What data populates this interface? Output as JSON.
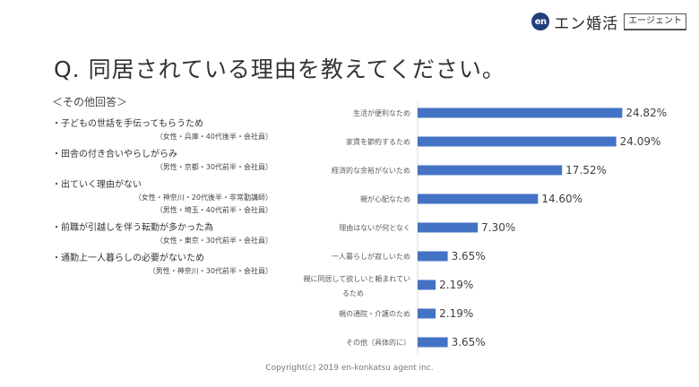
{
  "header": {
    "logo_mark": "en",
    "logo_text": "エン婚活",
    "logo_badge": "エージェント"
  },
  "title": "Q. 同居されている理由を教えてください。",
  "other_answers": {
    "heading": "＜その他回答＞",
    "items": [
      {
        "text": "・子どもの世話を手伝ってもらうため",
        "meta": [
          "（女性・兵庫・40代後半・会社員）"
        ]
      },
      {
        "text": "・田舎の付き合いやらしがらみ",
        "meta": [
          "（男性・京都・30代前半・会社員）"
        ]
      },
      {
        "text": "・出ていく理由がない",
        "meta": [
          "（女性・神奈川・20代後半・非常勤講師）",
          "（男性・埼玉・40代前半・会社員）"
        ]
      },
      {
        "text": "・前職が引越しを伴う転勤が多かった為",
        "meta": [
          "（女性・東京・30代前半・会社員）"
        ]
      },
      {
        "text": "・通勤上一人暮らしの必要がないため",
        "meta": [
          "（男性・神奈川・30代前半・会社員）"
        ]
      }
    ]
  },
  "footer": "Copyright(c) 2019 en-konkatsu agent inc.",
  "colors": {
    "bar": "#4472c4",
    "axis": "#d9d9d9"
  },
  "chart_data": {
    "type": "bar",
    "orientation": "horizontal",
    "categories": [
      [
        "生活が便利なため"
      ],
      [
        "家賃を節約するため"
      ],
      [
        "経済的な余裕がないため"
      ],
      [
        "親が心配なため"
      ],
      [
        "理由はないが何となく"
      ],
      [
        "一人暮らしが寂しいため"
      ],
      [
        "親に同居して欲しいと頼まれてい",
        "るため"
      ],
      [
        "親の通院・介護のため"
      ],
      [
        "その他（具体的に）"
      ]
    ],
    "values": [
      24.82,
      24.09,
      17.52,
      14.6,
      7.3,
      3.65,
      2.19,
      2.19,
      3.65
    ],
    "value_labels": [
      "24.82%",
      "24.09%",
      "17.52%",
      "14.60%",
      "7.30%",
      "3.65%",
      "2.19%",
      "2.19%",
      "3.65%"
    ],
    "xlim": [
      0,
      25
    ]
  }
}
